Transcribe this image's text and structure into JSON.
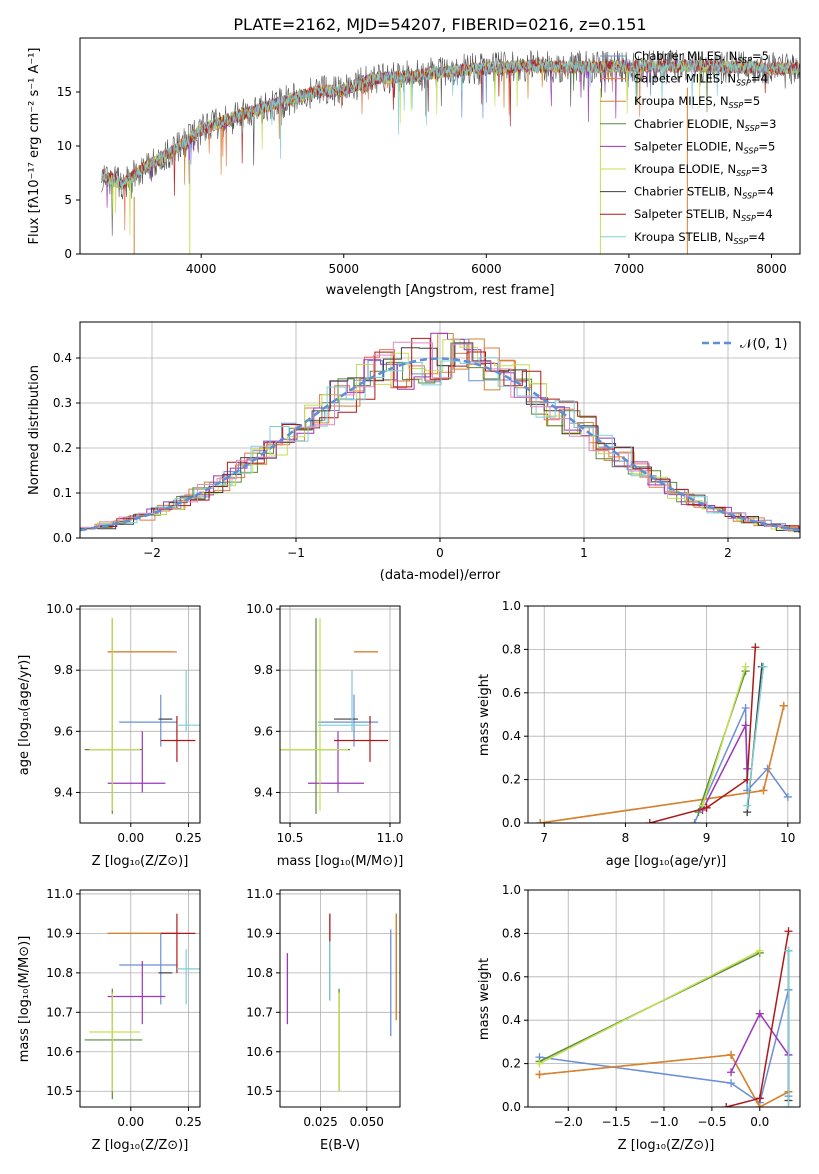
{
  "title": "PLATE=2162, MJD=54207, FIBERID=0216, z=0.151",
  "chart_data": [
    {
      "id": "spectrum",
      "type": "line",
      "xlabel": "wavelength [Angstrom, rest frame]",
      "ylabel": "Flux [fλ10⁻¹⁷ erg cm⁻² s⁻¹ A⁻¹]",
      "xlim": [
        3150,
        8200
      ],
      "ylim": [
        0,
        20
      ],
      "xticks": [
        4000,
        5000,
        6000,
        7000,
        8000
      ],
      "yticks": [
        0,
        5,
        10,
        15
      ],
      "legend_position": "top-right",
      "legend": [
        "Chabrier MILES, N_SSP=5",
        "Salpeter MILES, N_SSP=4",
        "Kroupa MILES, N_SSP=5",
        "Chabrier ELODIE, N_SSP=3",
        "Salpeter ELODIE, N_SSP=5",
        "Kroupa ELODIE, N_SSP=3",
        "Chabrier STELIB, N_SSP=4",
        "Salpeter STELIB, N_SSP=4",
        "Kroupa STELIB, N_SSP=4"
      ],
      "continuum": {
        "x": [
          3300,
          3450,
          3600,
          3800,
          4000,
          4200,
          4500,
          4800,
          5000,
          5200,
          5500,
          5800,
          6000,
          6300,
          6600,
          7000,
          7500,
          8000
        ],
        "y": [
          7.2,
          6.5,
          8.0,
          9.5,
          11.5,
          12.5,
          13.8,
          15.0,
          15.2,
          16.2,
          16.5,
          17.0,
          17.2,
          17.4,
          17.3,
          17.4,
          17.4,
          17.2
        ]
      }
    },
    {
      "id": "residuals",
      "type": "line",
      "xlabel": "(data-model)/error",
      "ylabel": "Normed distribution",
      "xlim": [
        -2.5,
        2.5
      ],
      "ylim": [
        0,
        0.48
      ],
      "xticks": [
        -2,
        -1,
        0,
        1,
        2
      ],
      "yticks": [
        0.0,
        0.1,
        0.2,
        0.3,
        0.4
      ],
      "grid": true,
      "legend": [
        "𝒩(0, 1)"
      ],
      "legend_position": "top-right"
    },
    {
      "id": "age-vs-Z",
      "type": "scatter",
      "xlabel": "Z [log₁₀(Z/Z⊙)]",
      "ylabel": "age  [log₁₀(age/yr)]",
      "xlim": [
        -0.22,
        0.3
      ],
      "ylim": [
        9.3,
        10.01
      ],
      "xticks": [
        -0.0,
        0.25
      ],
      "xticklabels": [
        "0.00",
        "0.25"
      ],
      "yticks": [
        9.4,
        9.6,
        9.8,
        10.0
      ],
      "yticklabels": [
        "9.4",
        "9.6",
        "9.8",
        "10.0"
      ],
      "grid": true
    },
    {
      "id": "age-vs-mass",
      "type": "scatter",
      "xlabel": "mass [log₁₀(M/M⊙)]",
      "xlim": [
        10.45,
        11.05
      ],
      "ylim": [
        9.3,
        10.01
      ],
      "xticks": [
        10.5,
        11.0
      ],
      "xticklabels": [
        "10.5",
        "11.0"
      ],
      "yticks": [
        9.4,
        9.6,
        9.8,
        10.0
      ],
      "yticklabels": [
        "9.4",
        "9.6",
        "9.8",
        "10.0"
      ],
      "grid": true
    },
    {
      "id": "weight-vs-age",
      "type": "line",
      "xlabel": "age  [log₁₀(age/yr)]",
      "ylabel": "mass weight",
      "xlim": [
        6.8,
        10.15
      ],
      "ylim": [
        0,
        1.0
      ],
      "xticks": [
        7,
        8,
        9,
        10
      ],
      "yticks": [
        0.0,
        0.2,
        0.4,
        0.6,
        0.8,
        1.0
      ],
      "yticklabels": [
        "0.0",
        "0.2",
        "0.4",
        "0.6",
        "0.8",
        "1.0"
      ],
      "grid": true
    },
    {
      "id": "mass-vs-Z",
      "type": "scatter",
      "xlabel": "Z [log₁₀(Z/Z⊙)]",
      "ylabel": "mass [log₁₀(M/M⊙)]",
      "xlim": [
        -0.22,
        0.3
      ],
      "ylim": [
        10.46,
        11.01
      ],
      "xticks": [
        0.0,
        0.25
      ],
      "xticklabels": [
        "0.00",
        "0.25"
      ],
      "yticks": [
        10.5,
        10.6,
        10.7,
        10.8,
        10.9,
        11.0
      ],
      "yticklabels": [
        "10.5",
        "10.6",
        "10.7",
        "10.8",
        "10.9",
        "11.0"
      ],
      "grid": true
    },
    {
      "id": "mass-vs-ebv",
      "type": "scatter",
      "xlabel": "E(B-V)",
      "xlim": [
        0.003,
        0.068
      ],
      "ylim": [
        10.46,
        11.01
      ],
      "xticks": [
        0.025,
        0.05
      ],
      "xticklabels": [
        "0.025",
        "0.050"
      ],
      "yticks": [
        10.5,
        10.6,
        10.7,
        10.8,
        10.9,
        11.0
      ],
      "yticklabels": [
        "10.5",
        "10.6",
        "10.7",
        "10.8",
        "10.9",
        "11.0"
      ],
      "grid": true
    },
    {
      "id": "weight-vs-Z",
      "type": "line",
      "xlabel": "Z [log₁₀(Z/Z⊙)]",
      "ylabel": "mass weight",
      "xlim": [
        -2.42,
        0.42
      ],
      "ylim": [
        0,
        1.0
      ],
      "xticks": [
        -2.0,
        -1.5,
        -1.0,
        -0.5,
        0.0
      ],
      "xticklabels": [
        "−2.0",
        "−1.5",
        "−1.0",
        "−0.5",
        "0.0"
      ],
      "yticks": [
        0.0,
        0.2,
        0.4,
        0.6,
        0.8,
        1.0
      ],
      "yticklabels": [
        "0.0",
        "0.2",
        "0.4",
        "0.6",
        "0.8",
        "1.0"
      ],
      "grid": true
    }
  ],
  "models": [
    {
      "name": "Chabrier MILES",
      "color": "#6a8fd8",
      "age": 9.63,
      "age_lo": 9.55,
      "age_hi": 9.72,
      "Z": 0.13,
      "Z_lo": -0.05,
      "Z_hi": 0.2,
      "mass": 10.82,
      "mass_lo": 10.72,
      "mass_hi": 10.9,
      "ebv": 0.063,
      "ebv_lo": 0.063,
      "mass_ebv_lo": 10.64,
      "mass_ebv_hi": 10.91,
      "w_age": [
        [
          8.85,
          0.0
        ],
        [
          9.48,
          0.53
        ],
        [
          9.5,
          0.15
        ],
        [
          9.75,
          0.25
        ],
        [
          10.0,
          0.12
        ]
      ],
      "w_Z": [
        [
          -2.3,
          0.23
        ],
        [
          -0.3,
          0.11
        ],
        [
          0.0,
          0.02
        ],
        [
          0.3,
          0.54
        ],
        [
          0.3,
          0.05
        ]
      ]
    },
    {
      "name": "Salpeter MILES",
      "color": "#e8764a",
      "age": 9.86,
      "age_lo": 9.86,
      "age_hi": 9.86,
      "Z": 0.14,
      "Z_lo": -0.1,
      "Z_hi": 0.2,
      "mass": 10.9,
      "mass_lo": 10.9,
      "mass_hi": 10.9,
      "ebv": 0.066,
      "ebv_lo": 0.066,
      "mass_ebv_lo": 10.68,
      "mass_ebv_hi": 10.95,
      "w_age": [
        [
          6.95,
          0.0
        ],
        [
          9.7,
          0.15
        ],
        [
          9.95,
          0.54
        ]
      ],
      "w_Z": [
        [
          -2.3,
          0.15
        ],
        [
          -0.3,
          0.24
        ],
        [
          0.0,
          0.0
        ],
        [
          0.3,
          0.07
        ]
      ]
    },
    {
      "name": "Kroupa MILES",
      "color": "#d6832d",
      "age": 9.86,
      "age_lo": 9.86,
      "age_hi": 9.86,
      "Z": 0.1,
      "Z_lo": -0.1,
      "Z_hi": 0.18,
      "mass": 10.9,
      "mass_lo": 10.9,
      "mass_hi": 10.9,
      "ebv": 0.066,
      "ebv_lo": 0.066,
      "mass_ebv_lo": 10.68,
      "mass_ebv_hi": 10.95,
      "w_age": [
        [
          6.95,
          0.0
        ],
        [
          9.7,
          0.15
        ],
        [
          9.95,
          0.54
        ]
      ],
      "w_Z": [
        [
          -2.3,
          0.15
        ],
        [
          -0.3,
          0.24
        ],
        [
          0.0,
          0.0
        ],
        [
          0.3,
          0.07
        ]
      ]
    },
    {
      "name": "Chabrier ELODIE",
      "color": "#5a8a3a",
      "age": 9.54,
      "age_lo": 9.33,
      "age_hi": 9.97,
      "Z": -0.08,
      "Z_lo": -0.2,
      "Z_hi": 0.05,
      "mass": 10.63,
      "mass_lo": 10.48,
      "mass_hi": 10.76,
      "ebv": 0.035,
      "ebv_lo": 0.035,
      "mass_ebv_lo": 10.5,
      "mass_ebv_hi": 10.76,
      "w_age": [
        [
          8.9,
          0.05
        ],
        [
          9.48,
          0.7
        ]
      ],
      "w_Z": [
        [
          -2.3,
          0.21
        ],
        [
          0.0,
          0.71
        ]
      ]
    },
    {
      "name": "Salpeter ELODIE",
      "color": "#9b37b8",
      "age": 9.43,
      "age_lo": 9.4,
      "age_hi": 9.6,
      "Z": 0.05,
      "Z_lo": -0.1,
      "Z_hi": 0.15,
      "mass": 10.74,
      "mass_lo": 10.67,
      "mass_hi": 10.83,
      "ebv": 0.007,
      "ebv_lo": 0.007,
      "mass_ebv_lo": 10.67,
      "mass_ebv_hi": 10.85,
      "w_age": [
        [
          8.95,
          0.06
        ],
        [
          9.48,
          0.45
        ],
        [
          9.5,
          0.25
        ]
      ],
      "w_Z": [
        [
          -0.3,
          0.16
        ],
        [
          0.0,
          0.43
        ],
        [
          0.3,
          0.24
        ]
      ]
    },
    {
      "name": "Kroupa ELODIE",
      "color": "#c2e052",
      "age": 9.54,
      "age_lo": 9.34,
      "age_hi": 9.97,
      "Z": -0.08,
      "Z_lo": -0.18,
      "Z_hi": 0.04,
      "mass": 10.65,
      "mass_lo": 10.5,
      "mass_hi": 10.75,
      "ebv": 0.035,
      "ebv_lo": 0.035,
      "mass_ebv_lo": 10.5,
      "mass_ebv_hi": 10.75,
      "w_age": [
        [
          8.95,
          0.08
        ],
        [
          9.48,
          0.72
        ]
      ],
      "w_Z": [
        [
          -2.3,
          0.2
        ],
        [
          0.0,
          0.72
        ]
      ]
    },
    {
      "name": "Chabrier STELIB",
      "color": "#404040",
      "age": 9.64,
      "age_lo": 9.64,
      "age_hi": 9.64,
      "Z": 0.15,
      "Z_lo": 0.12,
      "Z_hi": 0.18,
      "mass": 10.8,
      "mass_lo": 10.8,
      "mass_hi": 10.8,
      "ebv": 0.03,
      "ebv_lo": 0.03,
      "mass_ebv_lo": 10.73,
      "mass_ebv_hi": 10.86,
      "w_age": [
        [
          9.5,
          0.05
        ],
        [
          9.68,
          0.72
        ]
      ],
      "w_Z": [
        [
          0.3,
          0.72
        ],
        [
          0.3,
          0.03
        ]
      ]
    },
    {
      "name": "Salpeter STELIB",
      "color": "#b01818",
      "age": 9.57,
      "age_lo": 9.5,
      "age_hi": 9.65,
      "Z": 0.2,
      "Z_lo": 0.13,
      "Z_hi": 0.28,
      "mass": 10.9,
      "mass_lo": 10.8,
      "mass_hi": 10.95,
      "ebv": 0.03,
      "ebv_lo": 0.03,
      "mass_ebv_lo": 10.86,
      "mass_ebv_hi": 10.95,
      "w_age": [
        [
          8.3,
          0.0
        ],
        [
          9.0,
          0.07
        ],
        [
          9.5,
          0.2
        ],
        [
          9.6,
          0.81
        ]
      ],
      "w_Z": [
        [
          -0.35,
          0.0
        ],
        [
          0.0,
          0.04
        ],
        [
          0.3,
          0.81
        ]
      ]
    },
    {
      "name": "Kroupa STELIB",
      "color": "#7ecfd6",
      "age": 9.62,
      "age_lo": 9.6,
      "age_hi": 9.8,
      "Z": 0.24,
      "Z_lo": 0.2,
      "Z_hi": 0.3,
      "mass": 10.81,
      "mass_lo": 10.72,
      "mass_hi": 10.86,
      "ebv": 0.03,
      "ebv_lo": 0.03,
      "mass_ebv_lo": 10.73,
      "mass_ebv_hi": 10.88,
      "w_age": [
        [
          9.5,
          0.08
        ],
        [
          9.7,
          0.72
        ]
      ],
      "w_Z": [
        [
          0.3,
          0.72
        ],
        [
          0.3,
          0.0
        ]
      ]
    }
  ],
  "hist_colors": [
    "#6a8fd8",
    "#e8764a",
    "#d6832d",
    "#5a8a3a",
    "#9b37b8",
    "#c2e052",
    "#404040",
    "#b01818",
    "#7ecfd6",
    "#e58ac0"
  ],
  "normal_curve_color": "#5b8fd6"
}
